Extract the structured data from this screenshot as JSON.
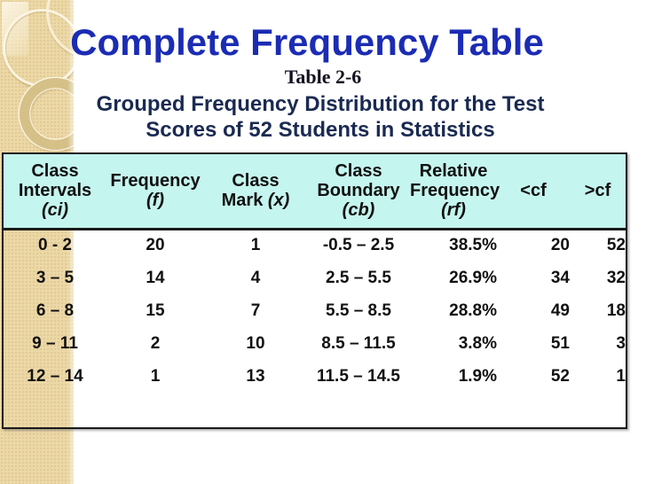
{
  "slide": {
    "title": "Complete Frequency Table",
    "caption": "Table 2-6",
    "subtitle_line1": "Grouped Frequency Distribution for the Test",
    "subtitle_line2": "Scores of 52 Students in Statistics"
  },
  "colors": {
    "title_blue": "#1b2cb4",
    "subtitle_navy": "#1a2a52",
    "header_cyan": "#c5f5ef",
    "table_border": "#1b1b1b",
    "table_text": "#111111",
    "sidebar_beige": "#ecd8a6",
    "slide_bg": "#ffffff"
  },
  "table": {
    "columns": [
      {
        "name": "class-intervals",
        "lines": [
          [
            {
              "t": "Class"
            }
          ],
          [
            {
              "t": "Intervals"
            }
          ],
          [
            {
              "t": "(ci)",
              "i": true
            }
          ]
        ]
      },
      {
        "name": "frequency",
        "lines": [
          [
            {
              "t": "Frequency"
            }
          ],
          [
            {
              "t": "(f)",
              "i": true
            }
          ]
        ]
      },
      {
        "name": "class-mark",
        "lines": [
          [
            {
              "t": "Class"
            }
          ],
          [
            {
              "t": "Mark "
            },
            {
              "t": "(x)",
              "i": true
            }
          ]
        ]
      },
      {
        "name": "class-boundary",
        "lines": [
          [
            {
              "t": "Class"
            }
          ],
          [
            {
              "t": "Boundary"
            }
          ],
          [
            {
              "t": "(cb)",
              "i": true
            }
          ]
        ]
      },
      {
        "name": "relative-frequency",
        "lines": [
          [
            {
              "t": "Relative"
            }
          ],
          [
            {
              "t": "Frequency"
            }
          ],
          [
            {
              "t": "(rf)",
              "i": true
            }
          ]
        ]
      },
      {
        "name": "cf-less-than",
        "lines": [
          [
            {
              "t": "<cf"
            }
          ]
        ]
      },
      {
        "name": "cf-greater-than",
        "lines": [
          [
            {
              "t": ">cf"
            }
          ]
        ]
      }
    ],
    "rows": [
      [
        "0 - 2",
        "20",
        "1",
        "-0.5 – 2.5",
        "38.5%",
        "20",
        "52"
      ],
      [
        "3 – 5",
        "14",
        "4",
        "2.5 – 5.5",
        "26.9%",
        "34",
        "32"
      ],
      [
        "6 – 8",
        "15",
        "7",
        "5.5 – 8.5",
        "28.8%",
        "49",
        "18"
      ],
      [
        "9 – 11",
        "2",
        "10",
        "8.5 – 11.5",
        "3.8%",
        "51",
        "3"
      ],
      [
        "12 – 14",
        "1",
        "13",
        "11.5 – 14.5",
        "1.9%",
        "52",
        "1"
      ]
    ]
  }
}
